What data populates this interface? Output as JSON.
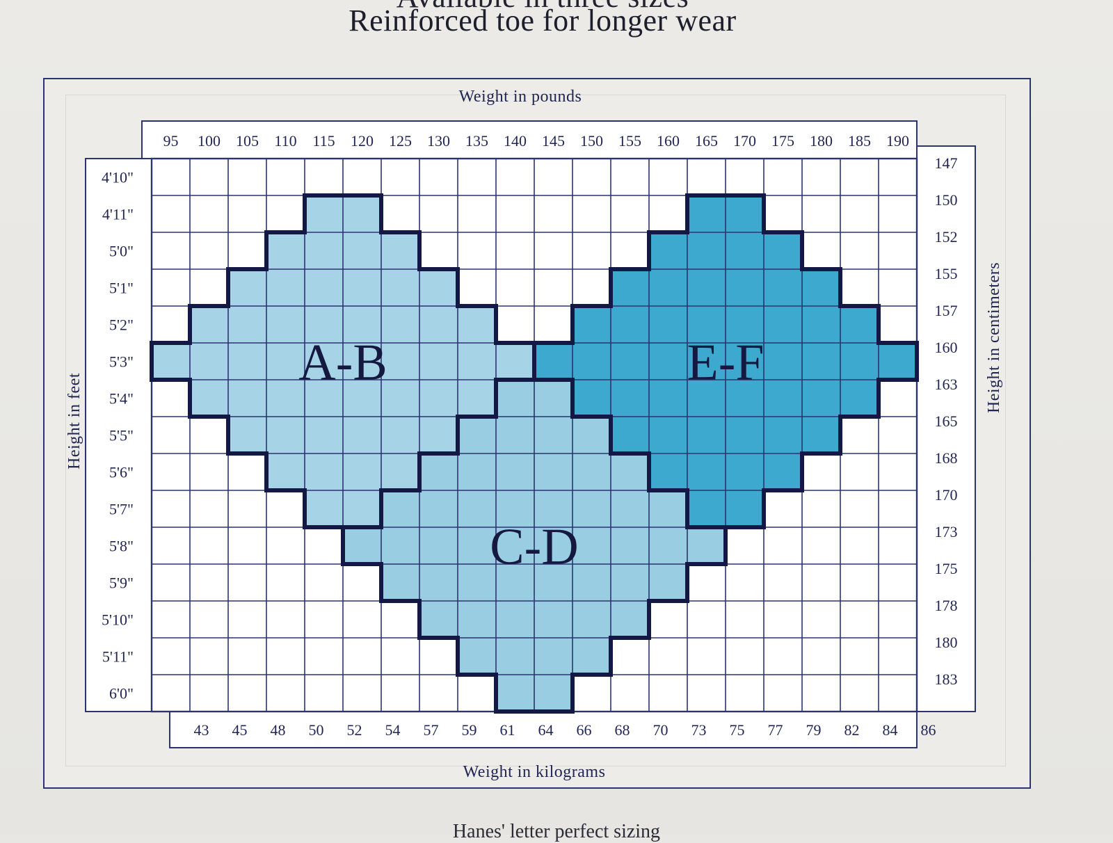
{
  "header": {
    "line_partial": "Available in three sizes",
    "line_main": "Reinforced toe for longer wear"
  },
  "footer": {
    "text": "Hanes' letter perfect sizing"
  },
  "chart_data": {
    "type": "heatmap",
    "title": "",
    "xlabel": "Weight in pounds",
    "x2label": "Weight in kilograms",
    "ylabel": "Height in feet",
    "y2label": "Height in centimeters",
    "x_ticks_lb": [
      "95",
      "100",
      "105",
      "110",
      "115",
      "120",
      "125",
      "130",
      "135",
      "140",
      "145",
      "150",
      "155",
      "160",
      "165",
      "170",
      "175",
      "180",
      "185",
      "190"
    ],
    "x_ticks_kg": [
      "43",
      "45",
      "48",
      "50",
      "52",
      "54",
      "57",
      "59",
      "61",
      "64",
      "66",
      "68",
      "70",
      "73",
      "75",
      "77",
      "79",
      "82",
      "84",
      "86"
    ],
    "y_ticks_ft": [
      "4'10\"",
      "4'11\"",
      "5'0\"",
      "5'1\"",
      "5'2\"",
      "5'3\"",
      "5'4\"",
      "5'5\"",
      "5'6\"",
      "5'7\"",
      "5'8\"",
      "5'9\"",
      "5'10\"",
      "5'11\"",
      "6'0\""
    ],
    "y_ticks_cm": [
      "147",
      "150",
      "152",
      "155",
      "157",
      "160",
      "163",
      "165",
      "168",
      "170",
      "173",
      "175",
      "178",
      "180",
      "183"
    ],
    "grid": true,
    "zones": [
      {
        "label": "A-B",
        "color": "#a6d3e6",
        "rows": [
          {
            "height": "4'11\"",
            "from_lb": 115,
            "to_lb": 120
          },
          {
            "height": "5'0\"",
            "from_lb": 110,
            "to_lb": 125
          },
          {
            "height": "5'1\"",
            "from_lb": 105,
            "to_lb": 130
          },
          {
            "height": "5'2\"",
            "from_lb": 100,
            "to_lb": 135
          },
          {
            "height": "5'3\"",
            "from_lb": 95,
            "to_lb": 140
          },
          {
            "height": "5'4\"",
            "from_lb": 100,
            "to_lb": 135
          },
          {
            "height": "5'5\"",
            "from_lb": 105,
            "to_lb": 130
          },
          {
            "height": "5'6\"",
            "from_lb": 110,
            "to_lb": 125
          },
          {
            "height": "5'7\"",
            "from_lb": 115,
            "to_lb": 120
          }
        ]
      },
      {
        "label": "C-D",
        "color": "#98cde2",
        "rows": [
          {
            "height": "5'4\"",
            "from_lb": 140,
            "to_lb": 145
          },
          {
            "height": "5'5\"",
            "from_lb": 135,
            "to_lb": 150
          },
          {
            "height": "5'6\"",
            "from_lb": 130,
            "to_lb": 155
          },
          {
            "height": "5'7\"",
            "from_lb": 125,
            "to_lb": 160
          },
          {
            "height": "5'8\"",
            "from_lb": 120,
            "to_lb": 165
          },
          {
            "height": "5'9\"",
            "from_lb": 125,
            "to_lb": 160
          },
          {
            "height": "5'10\"",
            "from_lb": 130,
            "to_lb": 155
          },
          {
            "height": "5'11\"",
            "from_lb": 135,
            "to_lb": 150
          },
          {
            "height": "6'0\"",
            "from_lb": 140,
            "to_lb": 145
          }
        ]
      },
      {
        "label": "E-F",
        "color": "#3ea9cf",
        "rows": [
          {
            "height": "4'11\"",
            "from_lb": 165,
            "to_lb": 170
          },
          {
            "height": "5'0\"",
            "from_lb": 160,
            "to_lb": 175
          },
          {
            "height": "5'1\"",
            "from_lb": 155,
            "to_lb": 180
          },
          {
            "height": "5'2\"",
            "from_lb": 150,
            "to_lb": 185
          },
          {
            "height": "5'3\"",
            "from_lb": 145,
            "to_lb": 190
          },
          {
            "height": "5'4\"",
            "from_lb": 150,
            "to_lb": 185
          },
          {
            "height": "5'5\"",
            "from_lb": 155,
            "to_lb": 180
          },
          {
            "height": "5'6\"",
            "from_lb": 160,
            "to_lb": 175
          },
          {
            "height": "5'7\"",
            "from_lb": 165,
            "to_lb": 170
          }
        ]
      }
    ]
  }
}
